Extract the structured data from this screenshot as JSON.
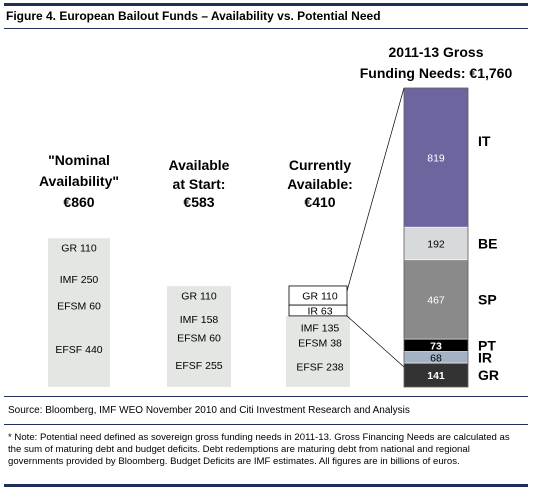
{
  "title": "Figure 4. European Bailout Funds – Availability vs. Potential Need",
  "source": "Source:  Bloomberg, IMF WEO November 2010 and Citi Investment Research and Analysis",
  "note": "* Note: Potential need defined as sovereign gross funding needs in 2011-13. Gross Financing Needs are calculated as the sum of maturing debt and budget deficits. Debt redemptions are maturing debt from national and regional governments provided by Bloomberg. Budget Deficits are IMF estimates. All figures are in billions of euros.",
  "colors": {
    "frame": "#1f2f5c",
    "available_box": "#e4e6e4",
    "IT": "#6d669e",
    "BE": "#d6dadb",
    "SP": "#8a8a8a",
    "PT": "#000000",
    "IR": "#a5b2c5",
    "GR": "#333333"
  },
  "chart_data": {
    "type": "bar",
    "units": "billions of euros",
    "columns": [
      {
        "header": [
          "\"Nominal",
          "Availability\"",
          "€860"
        ],
        "segments": [
          {
            "label": "GR 110",
            "value": 110
          },
          {
            "label": "IMF 250",
            "value": 250
          },
          {
            "label": "EFSM 60",
            "value": 60
          },
          {
            "label": "EFSF 440",
            "value": 440
          }
        ]
      },
      {
        "header": [
          "Available",
          "at Start:",
          "€583"
        ],
        "segments": [
          {
            "label": "GR 110",
            "value": 110
          },
          {
            "label": "IMF 158",
            "value": 158
          },
          {
            "label": "EFSM 60",
            "value": 60
          },
          {
            "label": "EFSF 255",
            "value": 255
          }
        ]
      },
      {
        "header": [
          "Currently",
          "Available:",
          "€410"
        ],
        "segments": [
          {
            "label": "GR 110",
            "value": 110,
            "used": true
          },
          {
            "label": "IR 63",
            "value": 63,
            "used": true
          },
          {
            "label": "IMF 135",
            "value": 135
          },
          {
            "label": "EFSM 38",
            "value": 38
          },
          {
            "label": "EFSF 238",
            "value": 238
          }
        ]
      },
      {
        "header": [
          "2011-13 Gross",
          "Funding Needs: €1,760"
        ],
        "segments": [
          {
            "country": "IT",
            "label": "819",
            "value": 819
          },
          {
            "country": "BE",
            "label": "192",
            "value": 192
          },
          {
            "country": "SP",
            "label": "467",
            "value": 467
          },
          {
            "country": "PT",
            "label": "73",
            "value": 73
          },
          {
            "country": "IR",
            "label": "68",
            "value": 68
          },
          {
            "country": "GR",
            "label": "141",
            "value": 141
          }
        ]
      }
    ]
  }
}
